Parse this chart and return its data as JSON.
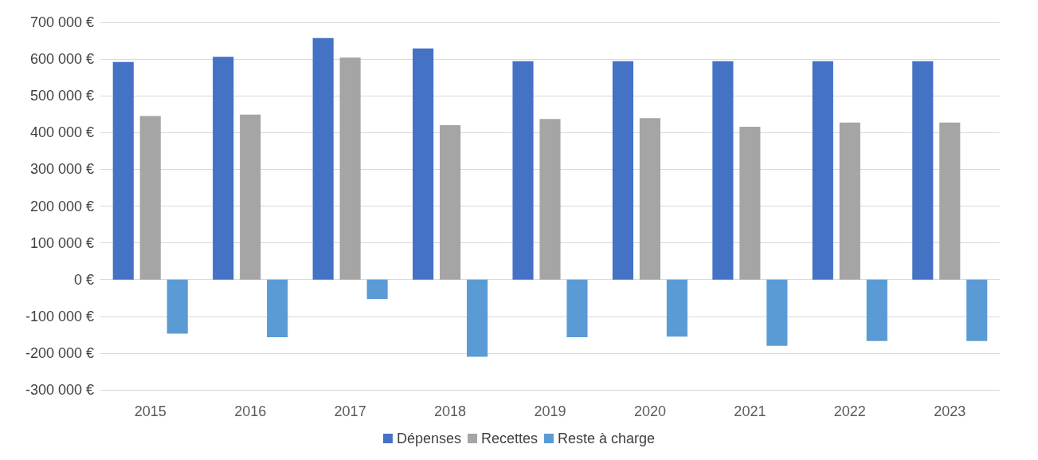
{
  "chart_data": {
    "type": "bar",
    "categories": [
      "2015",
      "2016",
      "2017",
      "2018",
      "2019",
      "2020",
      "2021",
      "2022",
      "2023"
    ],
    "series": [
      {
        "name": "Dépenses",
        "color": "#4472c4",
        "values": [
          592000,
          606000,
          657000,
          629000,
          594000,
          594000,
          594000,
          594000,
          594000
        ]
      },
      {
        "name": "Recettes",
        "color": "#a5a5a5",
        "values": [
          445000,
          449000,
          604000,
          420000,
          437000,
          439000,
          416000,
          427000,
          427000
        ]
      },
      {
        "name": "Reste à charge",
        "color": "#5b9bd5",
        "values": [
          -147000,
          -157000,
          -53000,
          -210000,
          -157000,
          -155000,
          -180000,
          -167000,
          -167000
        ]
      }
    ],
    "ylim": [
      -300000,
      700000
    ],
    "yticks": [
      {
        "value": -300000,
        "label": "-300 000 €"
      },
      {
        "value": -200000,
        "label": "-200 000 €"
      },
      {
        "value": -100000,
        "label": "-100 000 €"
      },
      {
        "value": 0,
        "label": "0 €"
      },
      {
        "value": 100000,
        "label": "100 000 €"
      },
      {
        "value": 200000,
        "label": "200 000 €"
      },
      {
        "value": 300000,
        "label": "300 000 €"
      },
      {
        "value": 400000,
        "label": "400 000 €"
      },
      {
        "value": 500000,
        "label": "500 000 €"
      },
      {
        "value": 600000,
        "label": "600 000 €"
      },
      {
        "value": 700000,
        "label": "700 000 €"
      }
    ],
    "grid": "y",
    "legend": "bottom"
  }
}
